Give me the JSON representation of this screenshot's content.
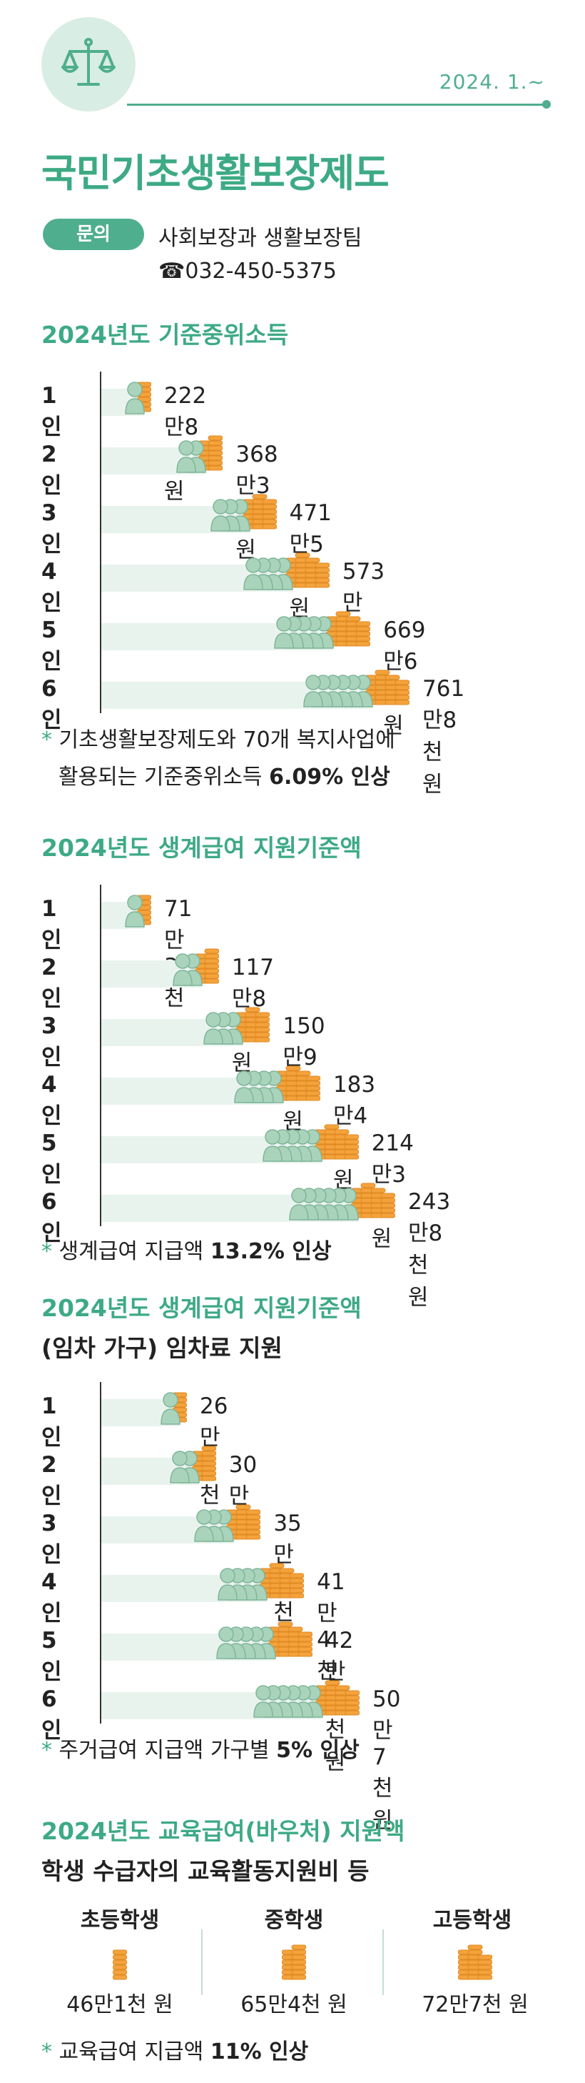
{
  "header": {
    "date": "2024. 1.~",
    "title": "국민기초생활보장제도"
  },
  "inquiry": {
    "label": "문의",
    "department": "사회보장과 생활보장팀",
    "phone": "☎032-450-5375"
  },
  "colors": {
    "accent": "#4fae8d",
    "title": "#3daa84",
    "coin": "#f4a23c",
    "person": "#a9d4bb",
    "bar": "#e9f3ee"
  },
  "icons": {
    "emblem": "scales-icon",
    "coin": "coin-stack-icon",
    "person": "person-icon"
  },
  "median_income": {
    "title": "2024년도 기준중위소득",
    "rows": [
      {
        "label": "1인",
        "amount": "222만8천 원",
        "value": 2228
      },
      {
        "label": "2인",
        "amount": "368만3천 원",
        "value": 3683
      },
      {
        "label": "3인",
        "amount": "471만5천 원",
        "value": 4715
      },
      {
        "label": "4인",
        "amount": "573만 원",
        "value": 5730
      },
      {
        "label": "5인",
        "amount": "669만6천 원",
        "value": 6696
      },
      {
        "label": "6인",
        "amount": "761만8천 원",
        "value": 7618
      }
    ],
    "note_star": "*",
    "note_line1": "기초생활보장제도와 70개 복지사업에",
    "note_line2_pre": "활용되는 기준중위소득 ",
    "note_line2_bold": "6.09% 인상"
  },
  "livelihood": {
    "title": "2024년도 생계급여 지원기준액",
    "rows": [
      {
        "label": "1인",
        "amount": "71만3천 원",
        "value": 713
      },
      {
        "label": "2인",
        "amount": "117만8천 원",
        "value": 1178
      },
      {
        "label": "3인",
        "amount": "150만9천 원",
        "value": 1509
      },
      {
        "label": "4인",
        "amount": "183만4천 원",
        "value": 1834
      },
      {
        "label": "5인",
        "amount": "214만3천 원",
        "value": 2143
      },
      {
        "label": "6인",
        "amount": "243만8천 원",
        "value": 2438
      }
    ],
    "note_star": "*",
    "note_pre": "생계급여 지급액 ",
    "note_bold": "13.2% 인상"
  },
  "housing": {
    "title": "2024년도 생계급여 지원기준액",
    "subtitle": "(임차 가구) 임차료 지원",
    "rows": [
      {
        "label": "1인",
        "amount": "26만8천 원",
        "value": 268
      },
      {
        "label": "2인",
        "amount": "30만 원",
        "value": 300
      },
      {
        "label": "3인",
        "amount": "35만8천 원",
        "value": 358
      },
      {
        "label": "4인",
        "amount": "41만4천 원",
        "value": 414
      },
      {
        "label": "5인",
        "amount": "42만8천 원",
        "value": 428
      },
      {
        "label": "6인",
        "amount": "50만7천 원",
        "value": 507
      }
    ],
    "note_star": "*",
    "note_pre": "주거급여 지급액 가구별 ",
    "note_bold": "5% 인상"
  },
  "education": {
    "title": "2024년도 교육급여(바우처) 지원액",
    "subtitle": "학생 수급자의 교육활동지원비 등",
    "items": [
      {
        "label": "초등학생",
        "amount": "46만1천 원",
        "value": 461
      },
      {
        "label": "중학생",
        "amount": "65만4천 원",
        "value": 654
      },
      {
        "label": "고등학생",
        "amount": "72만7천 원",
        "value": 727
      }
    ],
    "note_star": "*",
    "note_pre": "교육급여 지급액 ",
    "note_bold": "11% 인상"
  }
}
